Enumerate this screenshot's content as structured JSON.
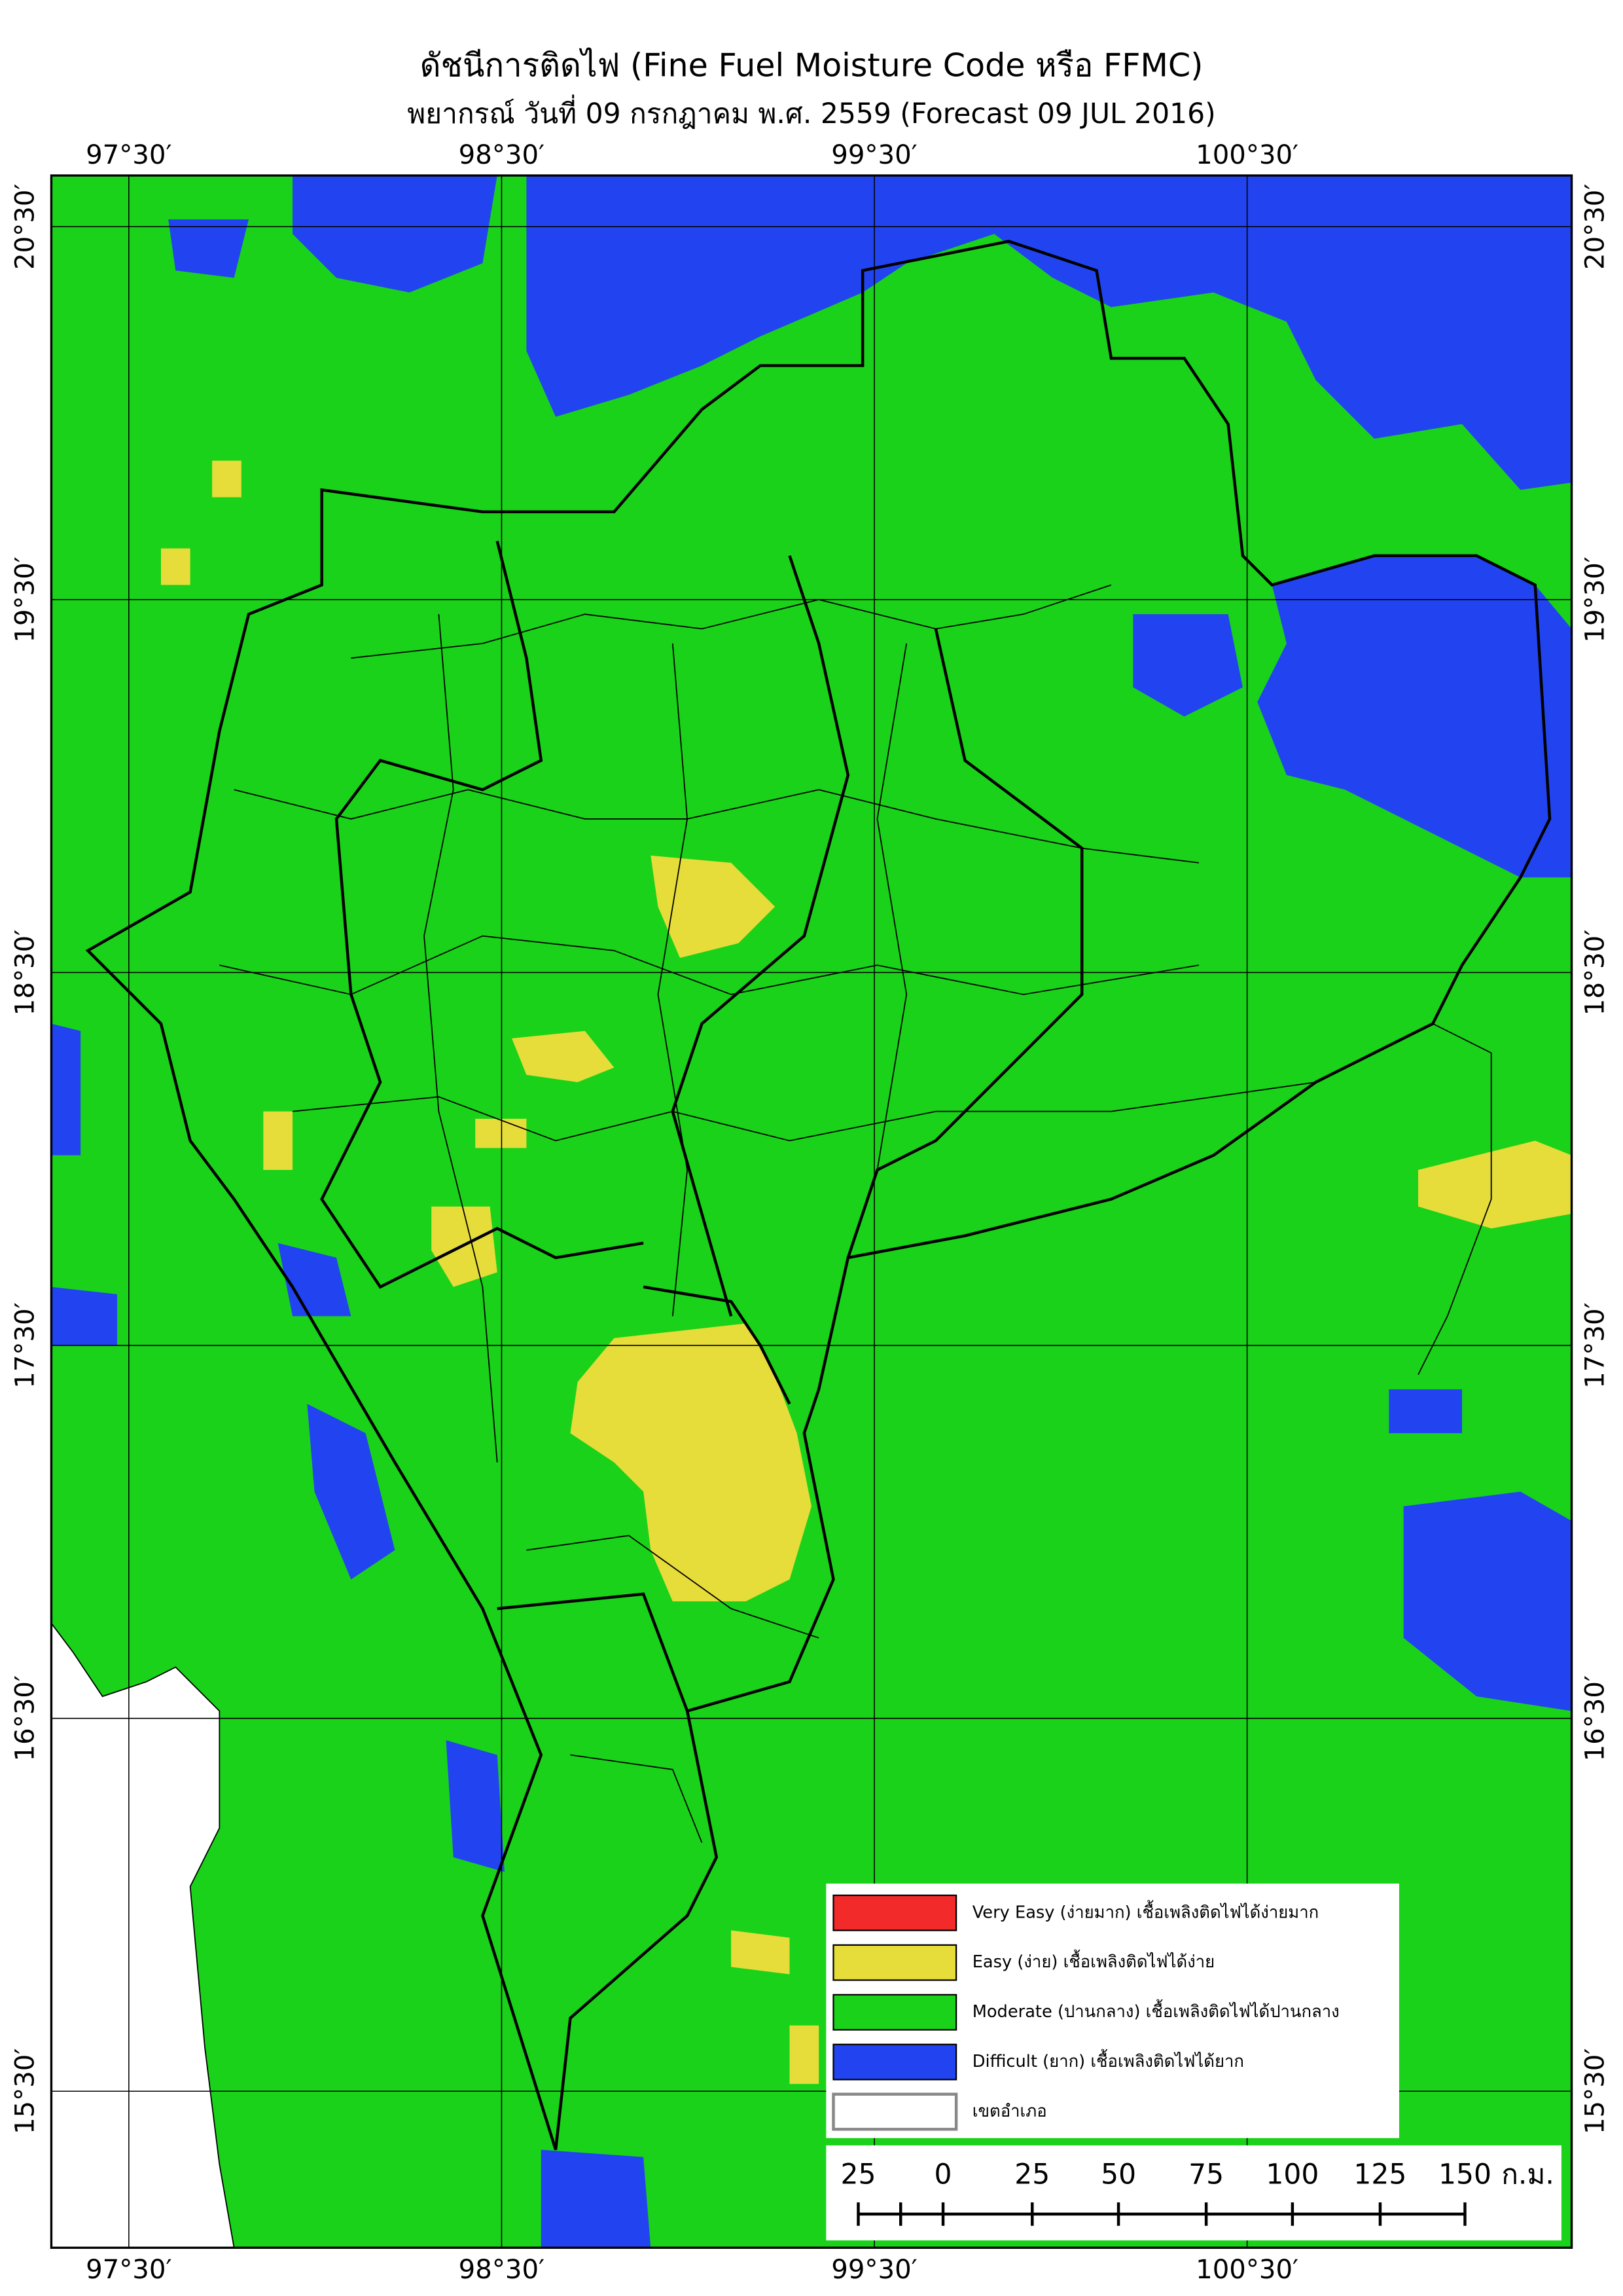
{
  "header": {
    "title": "ดัชนีการติดไฟ (Fine Fuel Moisture Code หรือ FFMC)",
    "subtitle": "พยากรณ์ วันที่ 09 กรกฎาคม พ.ศ. 2559 (Forecast 09 JUL 2016)"
  },
  "longitude_labels": [
    "97°30′",
    "98°30′",
    "99°30′",
    "100°30′"
  ],
  "latitude_labels": [
    "20°30′",
    "19°30′",
    "18°30′",
    "17°30′",
    "16°30′",
    "15°30′"
  ],
  "legend": [
    {
      "label": "Very Easy (ง่ายมาก) เชื้อเพลิงติดไฟได้ง่ายมาก",
      "color": "#f22a2a"
    },
    {
      "label": "Easy (ง่าย) เชื้อเพลิงติดไฟได้ง่าย",
      "color": "#e6dc3a"
    },
    {
      "label": "Moderate (ปานกลาง) เชื้อเพลิงติดไฟได้ปานกลาง",
      "color": "#1ad21a"
    },
    {
      "label": "Difficult (ยาก) เชื้อเพลิงติดไฟได้ยาก",
      "color": "#2244f0"
    },
    {
      "label": "เขตอำเภอ",
      "color": "#ffffff"
    }
  ],
  "scale_bar": {
    "labels": [
      "25",
      "0",
      "25",
      "50",
      "75",
      "100",
      "125",
      "150"
    ],
    "unit": "ก.ม."
  }
}
